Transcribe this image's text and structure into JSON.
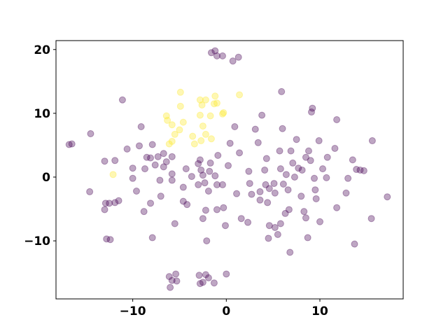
{
  "chart_data": {
    "type": "scatter",
    "xlim": [
      -18.2,
      18.9
    ],
    "ylim": [
      -19.1,
      21.4
    ],
    "xticks": [
      {
        "value": -10,
        "label": "−10"
      },
      0,
      10
    ],
    "yticks": [
      {
        "value": -10,
        "label": "−10"
      },
      0,
      10,
      20
    ],
    "alpha": 0.35,
    "series": [
      {
        "color": "#440154",
        "x": [
          -1.6,
          -1.2,
          -1.0,
          -0.4,
          0.7,
          1.3,
          -6.1,
          -5.8,
          -5.4,
          -5.3,
          -6.0,
          -2.9,
          -2.8,
          -2.2,
          -1.9,
          -2.5,
          -1.3,
          0,
          -16.5,
          -14.5,
          -11.1,
          -14.6,
          -12.9,
          -13.0,
          -12.5,
          -11.9,
          -12.8,
          -12.4,
          -13.0,
          -11.9,
          -10.6,
          -10.0,
          -10.0,
          -9.6,
          -9.1,
          -9.3,
          -8.8,
          -7.9,
          -8.1,
          -7.9,
          -8.5,
          -8.7,
          -8.1,
          -7.3,
          -7.6,
          -7.1,
          -7.0,
          -6.7,
          -6.4,
          -6.7,
          -5.8,
          -5.8,
          -5.8,
          -5.5,
          -4.6,
          -4.2,
          -4.6,
          -4.3,
          -3.7,
          -3.0,
          -2.8,
          -2.7,
          -2.5,
          -3.0,
          -2.3,
          -1.9,
          -2.2,
          -2.5,
          -2.1,
          -1.8,
          -1.7,
          -1.2,
          -1.0,
          -0.9,
          -1.0,
          -0.3,
          -0.1,
          -0.4,
          0.2,
          0.4,
          0.9,
          1.1,
          1.4,
          1.6,
          2.3,
          2.4,
          2.5,
          2.7,
          3.1,
          3.4,
          3.6,
          3.6,
          3.8,
          4.2,
          4.3,
          4.1,
          4.6,
          4.4,
          4.6,
          4.5,
          5.1,
          5.2,
          5.2,
          5.5,
          5.8,
          5.7,
          5.8,
          5.9,
          6.0,
          6.1,
          6.3,
          6.4,
          6.6,
          6.7,
          6.8,
          6.9,
          7.1,
          7.3,
          7.5,
          7.7,
          8.0,
          8.3,
          8.5,
          8.1,
          8.5,
          8.7,
          8.8,
          9.0,
          9.1,
          9.2,
          9.4,
          9.6,
          9.5,
          10.0,
          9.9,
          10.3,
          10.7,
          10.8,
          11.6,
          11.8,
          11.8,
          12.8,
          13.0,
          13.5,
          13.9,
          13.7,
          14.3,
          14.7,
          15.6,
          15.5,
          17.2,
          -11.5,
          -16.8
        ],
        "values": [
          19.5,
          19.8,
          19.0,
          19.0,
          18.2,
          18.8,
          -15.6,
          -16.2,
          -15.2,
          -16.3,
          -17.3,
          -15.4,
          -16.7,
          -15.3,
          -15.8,
          -16.5,
          -16.6,
          -15.2,
          5.2,
          6.8,
          12.1,
          -2.3,
          -4.1,
          -5.1,
          -4.1,
          -4.0,
          -9.7,
          -9.8,
          2.5,
          2.6,
          4.4,
          1.4,
          -0.2,
          -2.2,
          7.9,
          4.9,
          -5.4,
          -9.5,
          -4.1,
          5.1,
          3.1,
          1.3,
          3.0,
          3.2,
          1.9,
          -0.5,
          -3.0,
          3.7,
          2.4,
          1.6,
          3.2,
          0.5,
          -0.5,
          -7.3,
          -3.8,
          -4.3,
          -1.6,
          1.3,
          0.1,
          2.1,
          2.7,
          1.1,
          0.3,
          -1.2,
          -0.9,
          -2.2,
          -5.2,
          -6.5,
          -10.0,
          0.9,
          2.2,
          0.2,
          -5.1,
          3.4,
          -1.2,
          -4.8,
          -7.6,
          -1.2,
          1.8,
          5.3,
          7.9,
          -2.6,
          3.8,
          -6.5,
          -7.1,
          0.9,
          -1.0,
          -2.7,
          7.5,
          5.4,
          -3.6,
          -2.3,
          9.7,
          -1.2,
          2.9,
          1.1,
          -1.8,
          -4.0,
          -7.6,
          -9.6,
          -1.0,
          -2.5,
          -7.9,
          -9.0,
          -7.3,
          4.1,
          1.3,
          13.4,
          7.6,
          -1.1,
          -5.7,
          0.4,
          -2.0,
          -5.1,
          -11.8,
          4.1,
          2.2,
          0,
          5.9,
          1.4,
          -3.0,
          -5.4,
          -6.4,
          1.1,
          3.1,
          -9.5,
          4.1,
          2.6,
          10.2,
          10.8,
          -0.2,
          -3.4,
          -2.0,
          -7.0,
          5.7,
          1.3,
          -0.1,
          3.1,
          4.5,
          9.0,
          -4.8,
          -2.5,
          -0.2,
          2.7,
          1.2,
          -10.5,
          1.1,
          1.0,
          5.7,
          -6.5,
          -3.1,
          -3.7,
          5.1
        ]
      },
      {
        "color": "#fde725",
        "x": [
          -4.9,
          -4.9,
          -6.4,
          -6.3,
          -5.8,
          -4.6,
          -5.0,
          -5.5,
          -5.8,
          -6.1,
          -2.8,
          -2.2,
          -2.6,
          -1.2,
          -1.3,
          -1.0,
          -0.3,
          -0.4,
          1.4,
          -2.8,
          -1.7,
          -2.5,
          -3.6,
          -2.2,
          -3.4,
          -2.7,
          -1.6,
          -12.1
        ],
        "values": [
          13.3,
          11.1,
          9.6,
          8.9,
          8.2,
          8.6,
          7.4,
          6.7,
          5.6,
          5.2,
          12.1,
          12.1,
          11.3,
          12.7,
          11.5,
          11.6,
          10.1,
          9.9,
          12.9,
          9.7,
          9.6,
          8.0,
          6.4,
          6.7,
          5.2,
          5.7,
          6.0,
          0.4
        ]
      }
    ]
  }
}
